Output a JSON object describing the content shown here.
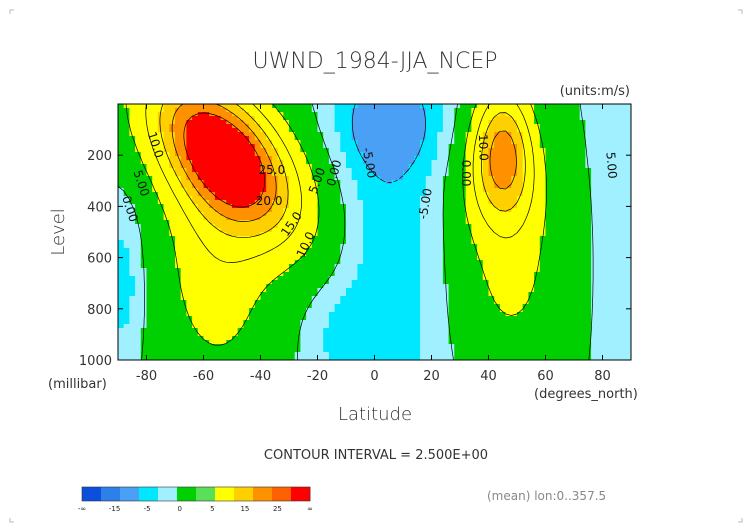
{
  "chart_data": {
    "type": "heatmap",
    "title": "UWND_1984-JJA_NCEP",
    "units": "(units:m/s)",
    "xlabel": "Latitude",
    "ylabel": "Level",
    "x_units": "(degrees_north)",
    "y_units": "(millibar)",
    "xlim": [
      -90,
      90
    ],
    "ylim": [
      1000,
      0
    ],
    "x_ticks": [
      -80,
      -60,
      -40,
      -20,
      0,
      20,
      40,
      60,
      80
    ],
    "y_ticks": [
      200,
      400,
      600,
      800,
      1000
    ],
    "contour_interval_text": "CONTOUR INTERVAL = 2.500E+00",
    "footer_note": "(mean) lon:0..357.5",
    "contour_labels": [
      {
        "text": "10.0",
        "x": -77,
        "y": 160,
        "rot": 72
      },
      {
        "text": "5.00",
        "x": -82,
        "y": 310,
        "rot": 72
      },
      {
        "text": "0.00",
        "x": -86,
        "y": 410,
        "rot": 72
      },
      {
        "text": "25.0",
        "x": -36,
        "y": 260,
        "rot": 0
      },
      {
        "text": "20.0",
        "x": -37,
        "y": 380,
        "rot": 0
      },
      {
        "text": "15.0",
        "x": -29,
        "y": 470,
        "rot": -55
      },
      {
        "text": "10.0",
        "x": -24,
        "y": 550,
        "rot": -65
      },
      {
        "text": "5.00",
        "x": -20,
        "y": 300,
        "rot": -70
      },
      {
        "text": "0.00",
        "x": -14,
        "y": 270,
        "rot": -75
      },
      {
        "text": "-5.00",
        "x": -2,
        "y": 230,
        "rot": 80
      },
      {
        "text": "-5.00",
        "x": 18,
        "y": 390,
        "rot": -80
      },
      {
        "text": "0.00",
        "x": 32,
        "y": 270,
        "rot": 90
      },
      {
        "text": "10.0",
        "x": 38,
        "y": 170,
        "rot": 88
      },
      {
        "text": "5.00",
        "x": 83,
        "y": 240,
        "rot": 85
      }
    ],
    "colorbar": {
      "colors": [
        "#0a50dc",
        "#2d80ea",
        "#4aa0f5",
        "#00e8ff",
        "#a0f0ff",
        "#00d000",
        "#58e058",
        "#ffff00",
        "#ffd000",
        "#ff9000",
        "#ff6000",
        "#ff0000"
      ],
      "tick_labels": [
        "-∞",
        "-15",
        "-5",
        "0",
        "5",
        "15",
        "25",
        "∞"
      ]
    }
  }
}
